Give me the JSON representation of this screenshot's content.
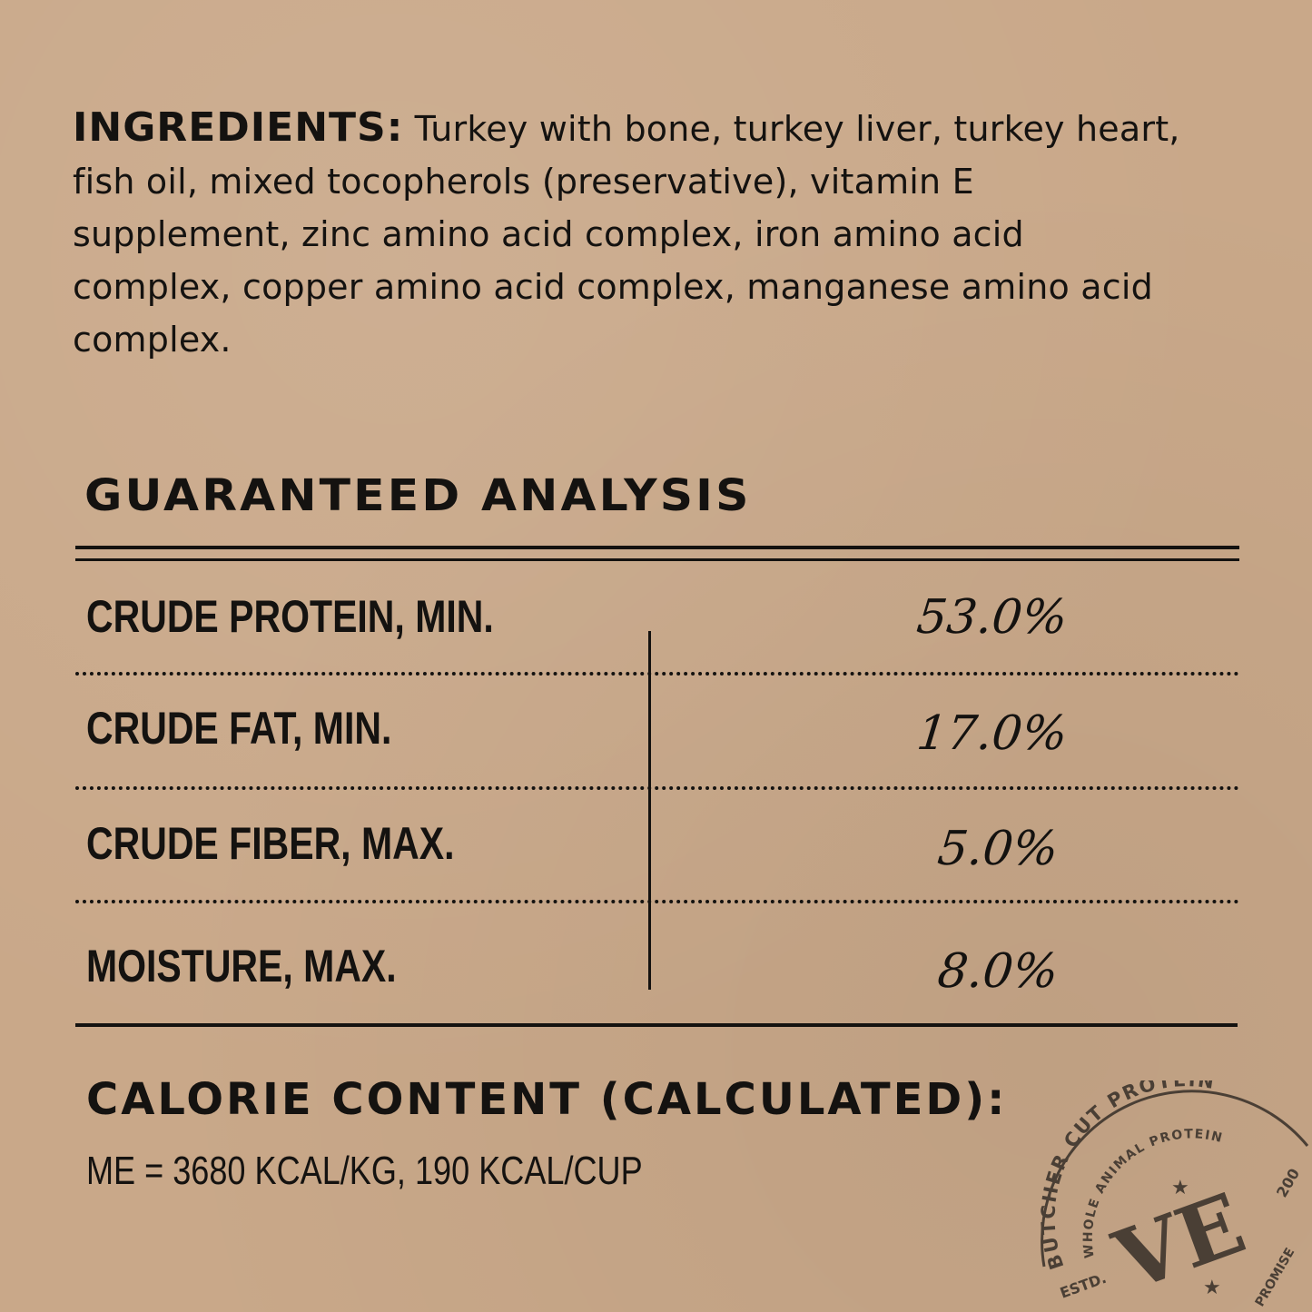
{
  "ingredients": {
    "label": "INGREDIENTS:",
    "text": "Turkey with bone, turkey liver, turkey heart, fish oil, mixed tocopherols (preservative), vitamin E supplement, zinc amino acid complex, iron amino acid complex, copper amino acid complex, manganese amino acid complex."
  },
  "analysis": {
    "title": "GUARANTEED ANALYSIS",
    "rows": [
      {
        "label": "CRUDE PROTEIN, MIN.",
        "value": "53.0%"
      },
      {
        "label": "CRUDE FAT, MIN.",
        "value": "17.0%"
      },
      {
        "label": "CRUDE FIBER, MAX.",
        "value": "5.0%"
      },
      {
        "label": "MOISTURE, MAX.",
        "value": "8.0%"
      }
    ]
  },
  "calorie": {
    "title": "CALORIE CONTENT (CALCULATED):",
    "text": "ME = 3680 KCAL/KG, 190 KCAL/CUP"
  },
  "stamp": {
    "outer": "BUTCHER CUT PROTEIN",
    "inner": "WHOLE ANIMAL PROTEIN",
    "logo": "VE",
    "estd": "ESTD.",
    "year": "200",
    "promise": "PROMISE",
    "protein2": "PROTEIN"
  },
  "colors": {
    "background": "#c9a889",
    "ink": "#141210",
    "stamp": "#4a3f35"
  }
}
